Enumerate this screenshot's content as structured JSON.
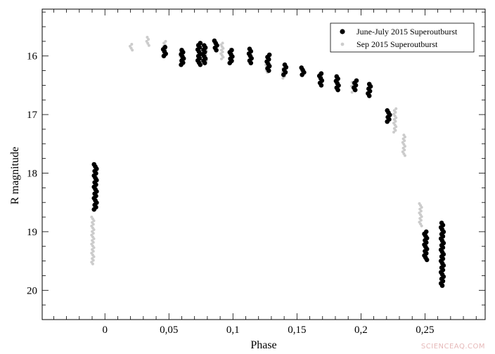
{
  "chart_data": {
    "type": "scatter",
    "title": "",
    "xlabel": "Phase",
    "ylabel": "R magnitude",
    "xlim": [
      -0.049,
      0.297
    ],
    "ylim": [
      15.2,
      20.5
    ],
    "y_inverted": true,
    "xticks": [
      0,
      0.05,
      0.1,
      0.15,
      0.2,
      0.25
    ],
    "xtick_labels": [
      "0",
      "0,05",
      "0,1",
      "0,15",
      "0,2",
      "0,25"
    ],
    "yticks": [
      16,
      17,
      18,
      19,
      20
    ],
    "ytick_labels": [
      "16",
      "17",
      "18",
      "19",
      "20"
    ],
    "grid": false,
    "legend_position": "top-right",
    "series": [
      {
        "name": "June-July 2015 Superoutburst",
        "color": "#000000",
        "marker": "filled-circle",
        "clusters": [
          {
            "x": -0.0075,
            "y_min": 17.85,
            "y_max": 18.62
          },
          {
            "x": 0.0465,
            "y_min": 15.85,
            "y_max": 16.0
          },
          {
            "x": 0.0605,
            "y_min": 15.9,
            "y_max": 16.15
          },
          {
            "x": 0.0735,
            "y_min": 15.78,
            "y_max": 16.15
          },
          {
            "x": 0.0775,
            "y_min": 15.82,
            "y_max": 16.12
          },
          {
            "x": 0.0865,
            "y_min": 15.74,
            "y_max": 15.9
          },
          {
            "x": 0.0985,
            "y_min": 15.9,
            "y_max": 16.12
          },
          {
            "x": 0.1135,
            "y_min": 15.88,
            "y_max": 16.12
          },
          {
            "x": 0.1275,
            "y_min": 15.98,
            "y_max": 16.25
          },
          {
            "x": 0.1405,
            "y_min": 16.15,
            "y_max": 16.32
          },
          {
            "x": 0.1545,
            "y_min": 16.2,
            "y_max": 16.32
          },
          {
            "x": 0.1685,
            "y_min": 16.3,
            "y_max": 16.5
          },
          {
            "x": 0.1815,
            "y_min": 16.35,
            "y_max": 16.58
          },
          {
            "x": 0.1955,
            "y_min": 16.42,
            "y_max": 16.58
          },
          {
            "x": 0.2065,
            "y_min": 16.48,
            "y_max": 16.68
          },
          {
            "x": 0.2215,
            "y_min": 16.93,
            "y_max": 17.12
          },
          {
            "x": 0.2505,
            "y_min": 19.0,
            "y_max": 19.48
          },
          {
            "x": 0.2635,
            "y_min": 18.85,
            "y_max": 19.92
          }
        ]
      },
      {
        "name": "Sep 2015 Superoutburst",
        "color": "#cccccc",
        "marker": "small-dot",
        "clusters": [
          {
            "x": -0.0095,
            "y_min": 18.75,
            "y_max": 19.55
          },
          {
            "x": 0.0205,
            "y_min": 15.8,
            "y_max": 15.9
          },
          {
            "x": 0.0335,
            "y_min": 15.68,
            "y_max": 15.82
          },
          {
            "x": 0.0465,
            "y_min": 15.75,
            "y_max": 15.9
          },
          {
            "x": 0.0595,
            "y_min": 15.88,
            "y_max": 16.12
          },
          {
            "x": 0.0785,
            "y_min": 15.85,
            "y_max": 16.08
          },
          {
            "x": 0.0915,
            "y_min": 15.78,
            "y_max": 16.05
          },
          {
            "x": 0.0985,
            "y_min": 15.88,
            "y_max": 16.05
          },
          {
            "x": 0.1265,
            "y_min": 16.05,
            "y_max": 16.28
          },
          {
            "x": 0.1395,
            "y_min": 16.15,
            "y_max": 16.38
          },
          {
            "x": 0.1685,
            "y_min": 16.3,
            "y_max": 16.45
          },
          {
            "x": 0.1815,
            "y_min": 16.42,
            "y_max": 16.56
          },
          {
            "x": 0.1935,
            "y_min": 16.45,
            "y_max": 16.62
          },
          {
            "x": 0.2265,
            "y_min": 16.9,
            "y_max": 17.3
          },
          {
            "x": 0.2335,
            "y_min": 17.35,
            "y_max": 17.7
          },
          {
            "x": 0.2465,
            "y_min": 18.52,
            "y_max": 18.9
          }
        ]
      }
    ],
    "watermark": "SCIENCEAQ.COM"
  }
}
